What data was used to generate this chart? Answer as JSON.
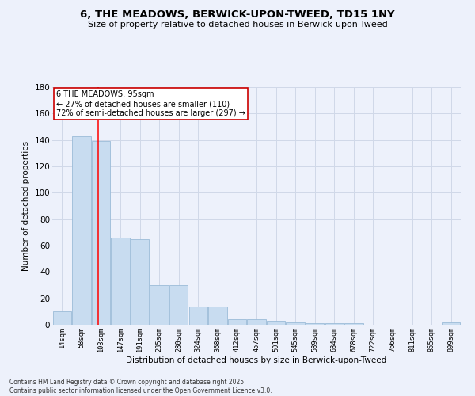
{
  "title": "6, THE MEADOWS, BERWICK-UPON-TWEED, TD15 1NY",
  "subtitle": "Size of property relative to detached houses in Berwick-upon-Tweed",
  "xlabel": "Distribution of detached houses by size in Berwick-upon-Tweed",
  "ylabel": "Number of detached properties",
  "categories": [
    "14sqm",
    "58sqm",
    "103sqm",
    "147sqm",
    "191sqm",
    "235sqm",
    "280sqm",
    "324sqm",
    "368sqm",
    "412sqm",
    "457sqm",
    "501sqm",
    "545sqm",
    "589sqm",
    "634sqm",
    "678sqm",
    "722sqm",
    "766sqm",
    "811sqm",
    "855sqm",
    "899sqm"
  ],
  "values": [
    10,
    143,
    139,
    66,
    65,
    30,
    30,
    14,
    14,
    4,
    4,
    3,
    2,
    1,
    1,
    1,
    0,
    0,
    0,
    0,
    2
  ],
  "bar_color": "#c8dcf0",
  "bar_edge_color": "#9bbbd8",
  "grid_color": "#d0d8e8",
  "bg_color": "#edf1fb",
  "red_line_x": 1.87,
  "annotation_text": "6 THE MEADOWS: 95sqm\n← 27% of detached houses are smaller (110)\n72% of semi-detached houses are larger (297) →",
  "annotation_box_color": "#ffffff",
  "annotation_box_edge": "#cc0000",
  "footnote": "Contains HM Land Registry data © Crown copyright and database right 2025.\nContains public sector information licensed under the Open Government Licence v3.0.",
  "ylim": [
    0,
    180
  ],
  "yticks": [
    0,
    20,
    40,
    60,
    80,
    100,
    120,
    140,
    160,
    180
  ],
  "title_fontsize": 9.5,
  "subtitle_fontsize": 8,
  "annotation_fontsize": 7
}
